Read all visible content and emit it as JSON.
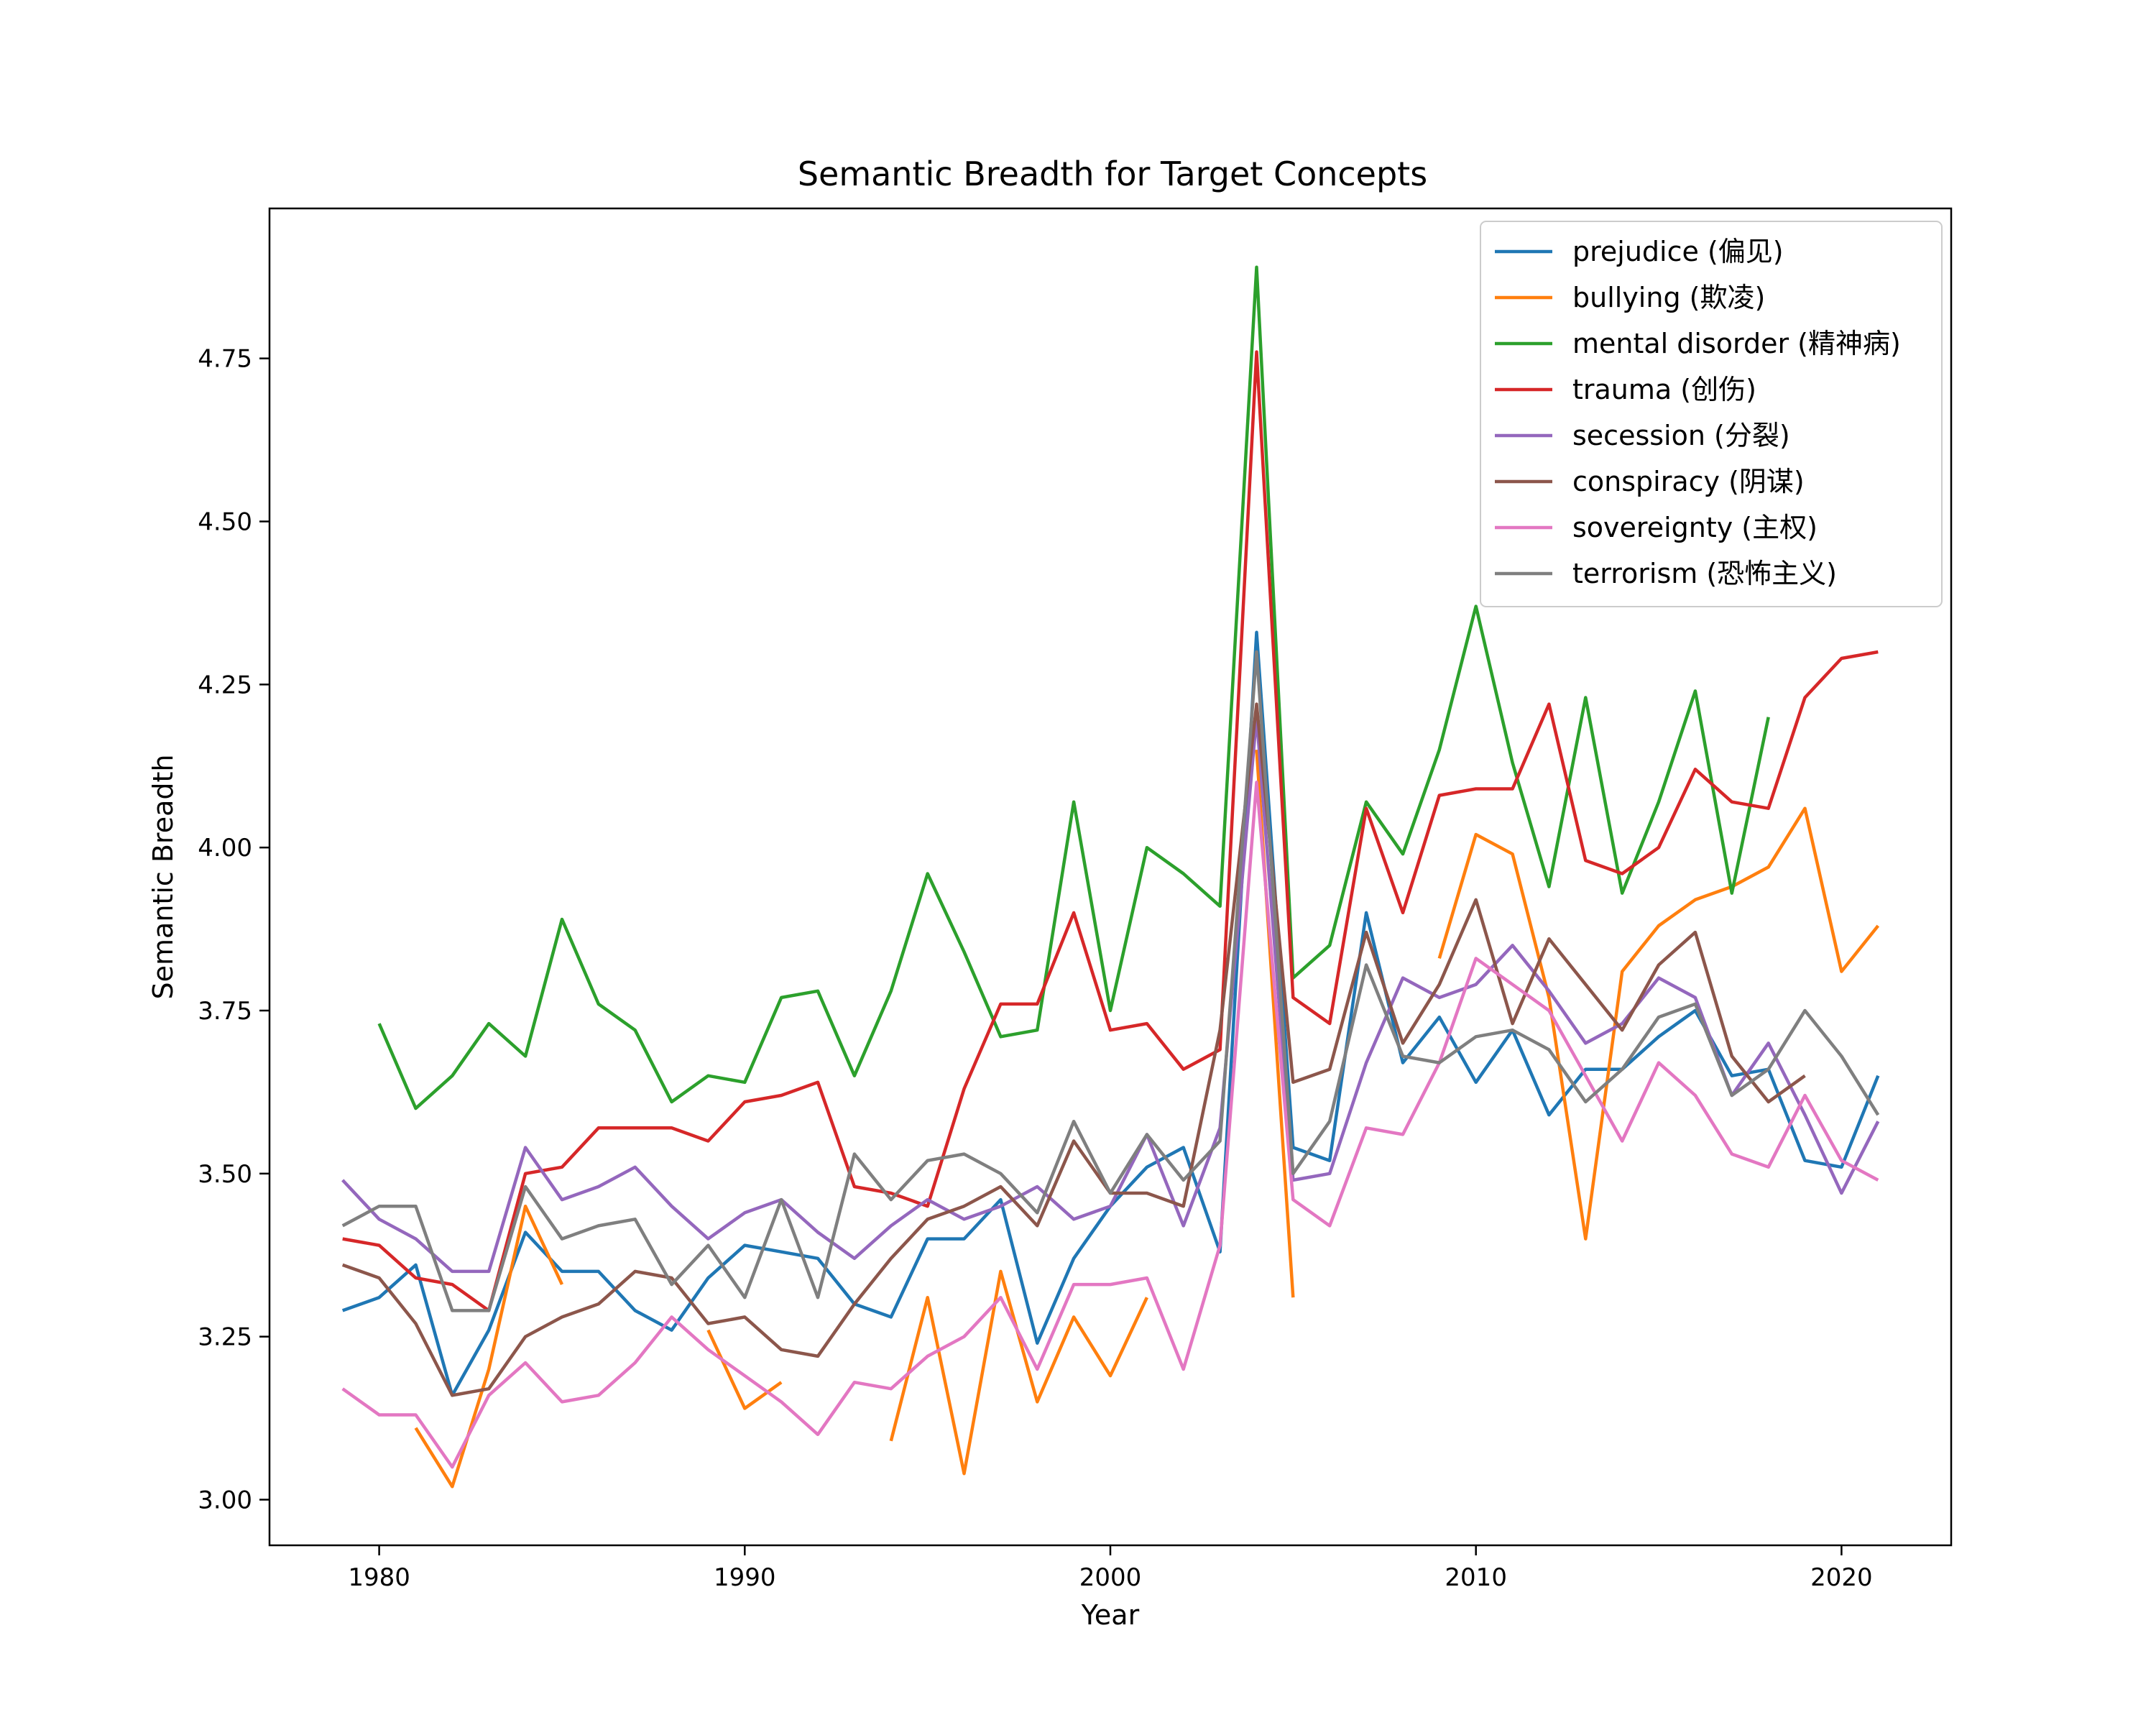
{
  "chart_data": {
    "type": "line",
    "title": "Semantic Breadth for Target Concepts",
    "xlabel": "Year",
    "ylabel": "Semantic Breadth",
    "xlim": [
      1977,
      2023
    ],
    "ylim": [
      2.93,
      4.98
    ],
    "x_ticks": [
      1980,
      1990,
      2000,
      2010,
      2020
    ],
    "x_tick_labels": [
      "1980",
      "1990",
      "2000",
      "2010",
      "2020"
    ],
    "y_ticks": [
      3.0,
      3.25,
      3.5,
      3.75,
      4.0,
      4.25,
      4.5,
      4.75
    ],
    "y_tick_labels": [
      "3.00",
      "3.25",
      "3.50",
      "3.75",
      "4.00",
      "4.25",
      "4.50",
      "4.75"
    ],
    "grid": false,
    "legend_position": "top-right",
    "x": [
      1979,
      1980,
      1981,
      1982,
      1983,
      1984,
      1985,
      1986,
      1987,
      1988,
      1989,
      1990,
      1991,
      1992,
      1993,
      1994,
      1995,
      1996,
      1997,
      1998,
      1999,
      2000,
      2001,
      2002,
      2003,
      2004,
      2005,
      2006,
      2007,
      2008,
      2009,
      2010,
      2011,
      2012,
      2013,
      2014,
      2015,
      2016,
      2017,
      2018,
      2019,
      2020,
      2021
    ],
    "series": [
      {
        "name": "prejudice (偏见)",
        "color": "#1f77b4",
        "values": [
          3.29,
          3.31,
          3.36,
          3.16,
          3.26,
          3.41,
          3.35,
          3.35,
          3.29,
          3.26,
          3.34,
          3.39,
          3.38,
          3.37,
          3.3,
          3.28,
          3.4,
          3.4,
          3.46,
          3.24,
          3.37,
          3.45,
          3.51,
          3.54,
          3.38,
          4.33,
          3.54,
          3.52,
          3.9,
          3.67,
          3.74,
          3.64,
          3.72,
          3.59,
          3.66,
          3.66,
          3.71,
          3.75,
          3.65,
          3.66,
          3.52,
          3.51,
          3.65
        ]
      },
      {
        "name": "bullying (欺凌)",
        "color": "#ff7f0e",
        "values": [
          null,
          null,
          3.11,
          3.02,
          3.2,
          3.45,
          3.33,
          null,
          null,
          null,
          3.26,
          3.14,
          3.18,
          null,
          null,
          3.09,
          3.31,
          3.04,
          3.35,
          3.15,
          3.28,
          3.19,
          3.31,
          null,
          null,
          4.15,
          3.31,
          null,
          null,
          null,
          3.83,
          4.02,
          3.99,
          3.77,
          3.4,
          3.81,
          3.88,
          3.92,
          3.94,
          3.97,
          4.06,
          3.81,
          3.88
        ]
      },
      {
        "name": "mental disorder (精神病)",
        "color": "#2ca02c",
        "values": [
          null,
          3.73,
          3.6,
          3.65,
          3.73,
          3.68,
          3.89,
          3.76,
          3.72,
          3.61,
          3.65,
          3.64,
          3.77,
          3.78,
          3.65,
          3.78,
          3.96,
          3.84,
          3.71,
          3.72,
          4.07,
          3.75,
          4.0,
          3.96,
          3.91,
          4.89,
          3.8,
          3.85,
          4.07,
          3.99,
          4.15,
          4.37,
          4.13,
          3.94,
          4.23,
          3.93,
          4.07,
          4.24,
          3.93,
          4.2,
          null,
          null,
          null
        ]
      },
      {
        "name": "trauma (创伤)",
        "color": "#d62728",
        "values": [
          3.4,
          3.39,
          3.34,
          3.33,
          3.29,
          3.5,
          3.51,
          3.57,
          3.57,
          3.57,
          3.55,
          3.61,
          3.62,
          3.64,
          3.48,
          3.47,
          3.45,
          3.63,
          3.76,
          3.76,
          3.9,
          3.72,
          3.73,
          3.66,
          3.69,
          4.76,
          3.77,
          3.73,
          4.06,
          3.9,
          4.08,
          4.09,
          4.09,
          4.22,
          3.98,
          3.96,
          4.0,
          4.12,
          4.07,
          4.06,
          4.23,
          4.29,
          4.3
        ]
      },
      {
        "name": "secession (分裂)",
        "color": "#9467bd",
        "values": [
          3.49,
          3.43,
          3.4,
          3.35,
          3.35,
          3.54,
          3.46,
          3.48,
          3.51,
          3.45,
          3.4,
          3.44,
          3.46,
          3.41,
          3.37,
          3.42,
          3.46,
          3.43,
          3.45,
          3.48,
          3.43,
          3.45,
          3.56,
          3.42,
          3.57,
          4.2,
          3.49,
          3.5,
          3.67,
          3.8,
          3.77,
          3.79,
          3.85,
          3.78,
          3.7,
          3.73,
          3.8,
          3.77,
          3.62,
          3.7,
          3.59,
          3.47,
          3.58
        ]
      },
      {
        "name": "conspiracy (阴谋)",
        "color": "#8c564b",
        "values": [
          3.36,
          3.34,
          3.27,
          3.16,
          3.17,
          3.25,
          3.28,
          3.3,
          3.35,
          3.34,
          3.27,
          3.28,
          3.23,
          3.22,
          3.3,
          3.37,
          3.43,
          3.45,
          3.48,
          3.42,
          3.55,
          3.47,
          3.47,
          3.45,
          3.72,
          4.22,
          3.64,
          3.66,
          3.87,
          3.7,
          3.79,
          3.92,
          3.73,
          3.86,
          3.79,
          3.72,
          3.82,
          3.87,
          3.68,
          3.61,
          3.65,
          null,
          null
        ]
      },
      {
        "name": "sovereignty (主权)",
        "color": "#e377c2",
        "values": [
          3.17,
          3.13,
          3.13,
          3.05,
          3.16,
          3.21,
          3.15,
          3.16,
          3.21,
          3.28,
          3.23,
          3.19,
          3.15,
          3.1,
          3.18,
          3.17,
          3.22,
          3.25,
          3.31,
          3.2,
          3.33,
          3.33,
          3.34,
          3.2,
          3.39,
          4.1,
          3.46,
          3.42,
          3.57,
          3.56,
          3.67,
          3.83,
          3.79,
          3.75,
          3.65,
          3.55,
          3.67,
          3.62,
          3.53,
          3.51,
          3.62,
          3.52,
          3.49
        ]
      },
      {
        "name": "terrorism (恐怖主义)",
        "color": "#7f7f7f",
        "values": [
          3.42,
          3.45,
          3.45,
          3.29,
          3.29,
          3.48,
          3.4,
          3.42,
          3.43,
          3.33,
          3.39,
          3.31,
          3.46,
          3.31,
          3.53,
          3.46,
          3.52,
          3.53,
          3.5,
          3.44,
          3.58,
          3.47,
          3.56,
          3.49,
          3.55,
          4.3,
          3.5,
          3.58,
          3.82,
          3.68,
          3.67,
          3.71,
          3.72,
          3.69,
          3.61,
          3.66,
          3.74,
          3.76,
          3.62,
          3.66,
          3.75,
          3.68,
          3.59
        ]
      }
    ]
  }
}
